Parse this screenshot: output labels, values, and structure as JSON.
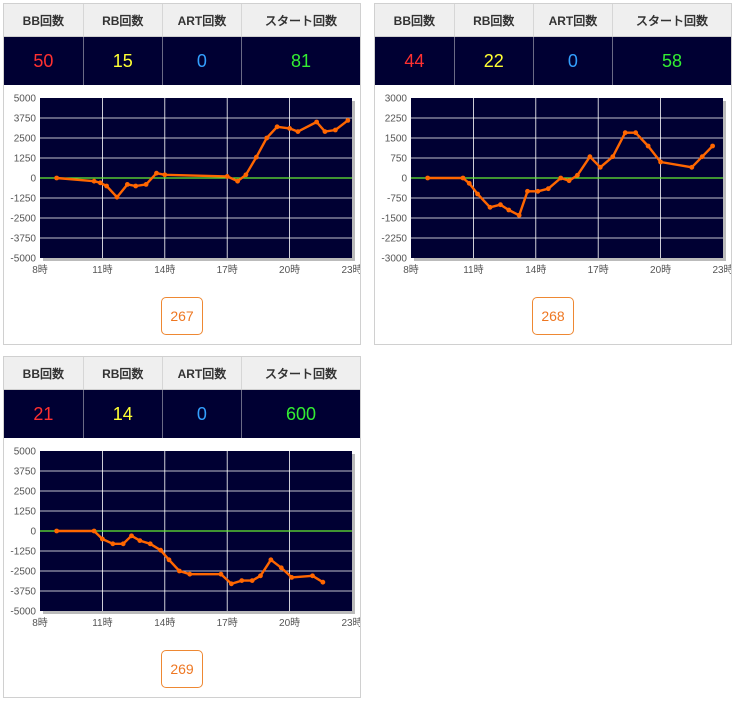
{
  "headers": {
    "bb": "BB回数",
    "rb": "RB回数",
    "art": "ART回数",
    "start": "スタート回数"
  },
  "colors": {
    "plot_bg": "#000033",
    "line": "#ff6600",
    "zero_line": "#66ee33",
    "grid": "#ffffff"
  },
  "machines": [
    {
      "number": "267",
      "bb": "50",
      "rb": "15",
      "art": "0",
      "start": "81"
    },
    {
      "number": "268",
      "bb": "44",
      "rb": "22",
      "art": "0",
      "start": "58"
    },
    {
      "number": "269",
      "bb": "21",
      "rb": "14",
      "art": "0",
      "start": "600"
    }
  ],
  "chart_data": [
    {
      "type": "line",
      "xticks": [
        "8時",
        "11時",
        "14時",
        "17時",
        "20時",
        "23時"
      ],
      "xlim": [
        8,
        23
      ],
      "ylim": [
        -5000,
        5000
      ],
      "yticks": [
        "5000",
        "3750",
        "2500",
        "1250",
        "0",
        "-1250",
        "-2500",
        "-3750",
        "-5000"
      ],
      "x": [
        8.8,
        10.6,
        10.9,
        11.2,
        11.7,
        12.2,
        12.6,
        13.1,
        13.6,
        14.0,
        17.0,
        17.5,
        17.9,
        18.4,
        18.9,
        19.4,
        20.0,
        20.4,
        21.3,
        21.7,
        22.2,
        22.8
      ],
      "y": [
        0,
        -200,
        -300,
        -500,
        -1200,
        -400,
        -500,
        -400,
        300,
        200,
        100,
        -200,
        200,
        1300,
        2500,
        3200,
        3100,
        2900,
        3500,
        2900,
        3000,
        3600
      ]
    },
    {
      "type": "line",
      "xticks": [
        "8時",
        "11時",
        "14時",
        "17時",
        "20時",
        "23時"
      ],
      "xlim": [
        8,
        23
      ],
      "ylim": [
        -3000,
        3000
      ],
      "yticks": [
        "3000",
        "2250",
        "1500",
        "750",
        "0",
        "-750",
        "-1500",
        "-2250",
        "-3000"
      ],
      "x": [
        8.8,
        10.5,
        10.8,
        11.2,
        11.8,
        12.3,
        12.7,
        13.2,
        13.6,
        14.1,
        14.6,
        15.2,
        15.6,
        16.0,
        16.6,
        17.1,
        17.7,
        18.3,
        18.8,
        19.4,
        20.0,
        21.5,
        22.0,
        22.5
      ],
      "y": [
        0,
        0,
        -200,
        -600,
        -1100,
        -1000,
        -1200,
        -1400,
        -500,
        -500,
        -400,
        0,
        -100,
        100,
        800,
        400,
        800,
        1700,
        1700,
        1200,
        600,
        400,
        800,
        1200
      ]
    },
    {
      "type": "line",
      "xticks": [
        "8時",
        "11時",
        "14時",
        "17時",
        "20時",
        "23時"
      ],
      "xlim": [
        8,
        23
      ],
      "ylim": [
        -5000,
        5000
      ],
      "yticks": [
        "5000",
        "3750",
        "2500",
        "1250",
        "0",
        "-1250",
        "-2500",
        "-3750",
        "-5000"
      ],
      "x": [
        8.8,
        10.6,
        11.0,
        11.5,
        12.0,
        12.4,
        12.8,
        13.3,
        13.8,
        14.2,
        14.7,
        15.2,
        16.7,
        17.2,
        17.7,
        18.2,
        18.6,
        19.1,
        19.6,
        20.1,
        21.1,
        21.6
      ],
      "y": [
        0,
        0,
        -500,
        -800,
        -800,
        -300,
        -600,
        -800,
        -1200,
        -1800,
        -2500,
        -2700,
        -2700,
        -3300,
        -3100,
        -3100,
        -2800,
        -1800,
        -2300,
        -2900,
        -2800,
        -3200
      ]
    }
  ]
}
